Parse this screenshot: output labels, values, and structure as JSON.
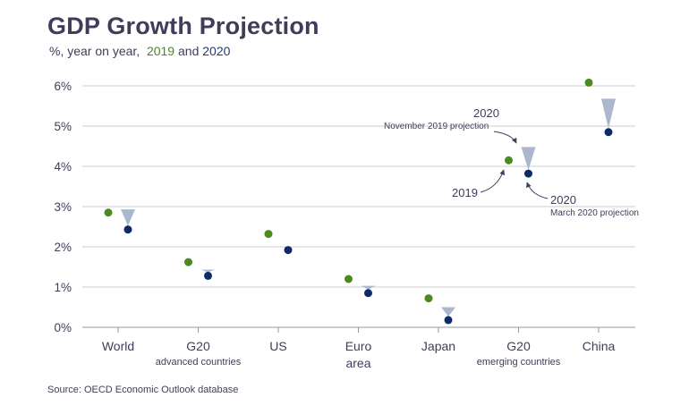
{
  "header": {
    "title": "GDP Growth Projection",
    "subtitle_prefix": "%, year on year,",
    "subtitle_2019": "2019",
    "subtitle_and": "and",
    "subtitle_2020": "2020"
  },
  "footer": {
    "source": "Source: OECD Economic Outlook database"
  },
  "colors": {
    "series_2019": "#4a8a1e",
    "series_2020": "#0d2b66",
    "revision_marker": "#aab7cc",
    "grid": "#cccccc",
    "text": "#3f3d5a"
  },
  "chart_data": {
    "type": "scatter",
    "title": "GDP Growth Projection",
    "ylabel": "%, year on year",
    "ylim": [
      0,
      6
    ],
    "yticks": [
      "0%",
      "1%",
      "2%",
      "3%",
      "4%",
      "5%",
      "6%"
    ],
    "categories": [
      {
        "label": "World",
        "sub": ""
      },
      {
        "label": "G20",
        "sub": "advanced countries"
      },
      {
        "label": "US",
        "sub": ""
      },
      {
        "label": "Euro",
        "sub": "area"
      },
      {
        "label": "Japan",
        "sub": ""
      },
      {
        "label": "G20",
        "sub": "emerging countries"
      },
      {
        "label": "China",
        "sub": ""
      }
    ],
    "series": [
      {
        "name": "2019",
        "values": [
          2.85,
          1.62,
          2.32,
          1.2,
          0.72,
          4.15,
          6.08
        ]
      },
      {
        "name": "2020 (March 2020 projection)",
        "values": [
          2.43,
          1.28,
          1.92,
          0.85,
          0.18,
          3.82,
          4.85
        ]
      },
      {
        "name": "2020 (November 2019 projection)",
        "values": [
          2.93,
          1.43,
          null,
          1.03,
          0.5,
          4.48,
          5.68
        ]
      }
    ],
    "annotations": {
      "nov_year": "2020",
      "nov_label": "November 2019 projection",
      "y2019": "2019",
      "mar_year": "2020",
      "mar_label": "March 2020 projection"
    }
  }
}
